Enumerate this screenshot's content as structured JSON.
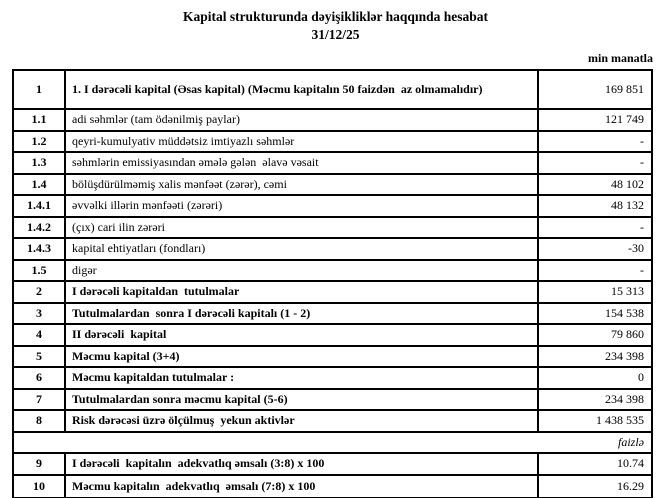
{
  "header": {
    "title": "Kapital strukturunda dəyişikliklər haqqında hesabat",
    "date": "31/12/25",
    "unit_note": "min manatla"
  },
  "table": {
    "rows": [
      {
        "num": "1",
        "label": "1. I dərəcəli kapital (Əsas kapital) (Məcmu kapitalın 50 faizdən  az olmamalıdır)",
        "value": "169 851",
        "level": "main"
      },
      {
        "num": "1.1",
        "label": "adi səhmlər (tam ödənilmiş paylar)",
        "value": "121 749",
        "level": "sub"
      },
      {
        "num": "1.2",
        "label": "qeyri-kumulyativ müddətsiz imtiyazlı səhmlər",
        "value": "-",
        "level": "sub"
      },
      {
        "num": "1.3",
        "label": "səhmlərin emissiyasından əmələ gələn  əlavə vəsait",
        "value": "-",
        "level": "sub"
      },
      {
        "num": "1.4",
        "label": "bölüşdürülməmiş xalis mənfəət (zərər), cəmi",
        "value": "48 102",
        "level": "sub"
      },
      {
        "num": "1.4.1",
        "label": "əvvəlki illərin mənfəəti (zərəri)",
        "value": "48 132",
        "level": "sub"
      },
      {
        "num": "1.4.2",
        "label": "(çıx) cari ilin zərəri",
        "value": "-",
        "level": "sub"
      },
      {
        "num": "1.4.3",
        "label": "kapital ehtiyatları (fondları)",
        "value": "-30",
        "level": "sub"
      },
      {
        "num": "1.5",
        "label": "digər",
        "value": "-",
        "level": "sub"
      },
      {
        "num": "2",
        "label": "I dərəcəli kapitaldan  tutulmalar",
        "value": "15 313",
        "level": "main"
      },
      {
        "num": "3",
        "label": "Tutulmalardan  sonra I dərəcəli kapitalı (1 - 2)",
        "value": "154 538",
        "level": "main"
      },
      {
        "num": "4",
        "label": "II dərəcəli  kapital",
        "value": "79 860",
        "level": "main"
      },
      {
        "num": "5",
        "label": "Məcmu kapital (3+4)",
        "value": "234 398",
        "level": "main"
      },
      {
        "num": "6",
        "label": "Məcmu kapitaldan tutulmalar :",
        "value": "0",
        "level": "main"
      },
      {
        "num": "7",
        "label": "Tutulmalardan sonra məcmu kapital (5-6)",
        "value": "234 398",
        "level": "main"
      },
      {
        "num": "8",
        "label": "Risk dərəcəsi üzrə ölçülmuş  yekun aktivlər",
        "value": "1 438 535",
        "level": "main"
      },
      {
        "type": "note",
        "label": "faizlə"
      },
      {
        "num": "9",
        "label": "I dərəcəli  kapitalın  adekvatlıq əmsalı (3:8) x 100",
        "value": "10.74",
        "level": "main"
      },
      {
        "num": "10",
        "label": "Məcmu kapitalın  adekvatlıq  əmsalı (7:8) x 100",
        "value": "16.29",
        "level": "main"
      }
    ]
  }
}
